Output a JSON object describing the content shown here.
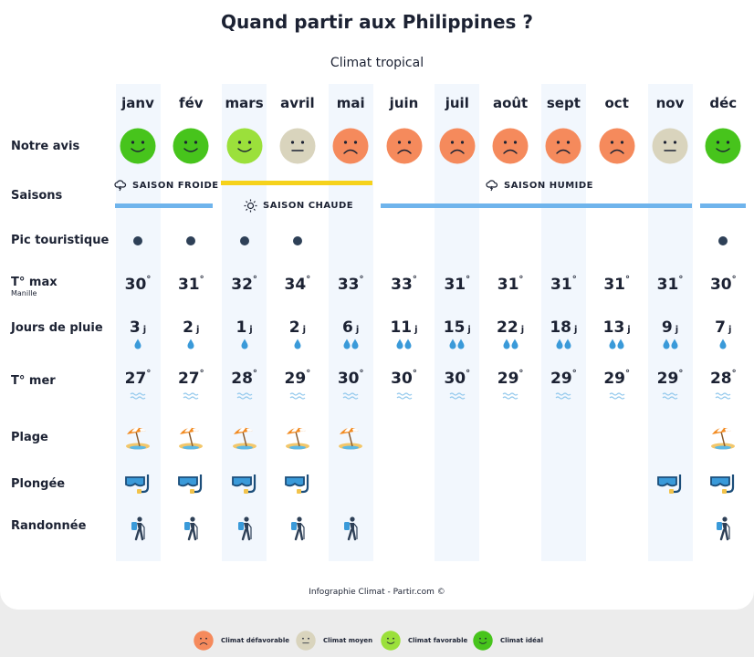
{
  "title": "Quand partir aux Philippines ?",
  "subtitle": "Climat tropical",
  "months": [
    "janv",
    "fév",
    "mars",
    "avril",
    "mai",
    "juin",
    "juil",
    "août",
    "sept",
    "oct",
    "nov",
    "déc"
  ],
  "row_labels": {
    "avis": "Notre avis",
    "saisons": "Saisons",
    "pic": "Pic touristique",
    "tmax": "T° max",
    "tmax_sub": "Manille",
    "pluie": "Jours de pluie",
    "mer": "T° mer",
    "plage": "Plage",
    "plongee": "Plongée",
    "rando": "Randonnée"
  },
  "ratings": [
    "ideal",
    "ideal",
    "favorable",
    "moyen",
    "defavorable",
    "defavorable",
    "defavorable",
    "defavorable",
    "defavorable",
    "defavorable",
    "moyen",
    "ideal"
  ],
  "rating_colors": {
    "ideal": "#47c41c",
    "favorable": "#9be03b",
    "moyen": "#d9d4bd",
    "defavorable": "#f58a5c"
  },
  "seasons": {
    "froide": "SAISON FROIDE",
    "chaude": "SAISON CHAUDE",
    "humide": "SAISON HUMIDE",
    "froide_color": "#6fb4ec",
    "chaude_color": "#f6d21b",
    "humide_color": "#6fb4ec"
  },
  "peak": [
    true,
    true,
    true,
    true,
    false,
    false,
    false,
    false,
    false,
    false,
    false,
    true
  ],
  "tmax": [
    "30",
    "31",
    "32",
    "34",
    "33",
    "33",
    "31",
    "31",
    "31",
    "31",
    "31",
    "30"
  ],
  "rain_days": [
    "3",
    "2",
    "1",
    "2",
    "6",
    "11",
    "15",
    "22",
    "18",
    "13",
    "9",
    "7"
  ],
  "rain_unit": "j",
  "rain_drops": [
    1,
    1,
    1,
    1,
    2,
    2,
    2,
    2,
    2,
    2,
    2,
    1
  ],
  "sea_temp": [
    "27",
    "27",
    "28",
    "29",
    "30",
    "30",
    "30",
    "29",
    "29",
    "29",
    "29",
    "28"
  ],
  "degree": "°",
  "beach": [
    true,
    true,
    true,
    true,
    true,
    false,
    false,
    false,
    false,
    false,
    false,
    true
  ],
  "diving": [
    true,
    true,
    true,
    true,
    false,
    false,
    false,
    false,
    false,
    false,
    true,
    true
  ],
  "hiking": [
    true,
    true,
    true,
    true,
    true,
    false,
    false,
    false,
    false,
    false,
    false,
    true
  ],
  "footer": "Infographie Climat - Partir.com ©",
  "legend": [
    {
      "key": "defavorable",
      "label": "Climat défavorable"
    },
    {
      "key": "moyen",
      "label": "Climat moyen"
    },
    {
      "key": "favorable",
      "label": "Climat favorable"
    },
    {
      "key": "ideal",
      "label": "Climat idéal"
    }
  ]
}
